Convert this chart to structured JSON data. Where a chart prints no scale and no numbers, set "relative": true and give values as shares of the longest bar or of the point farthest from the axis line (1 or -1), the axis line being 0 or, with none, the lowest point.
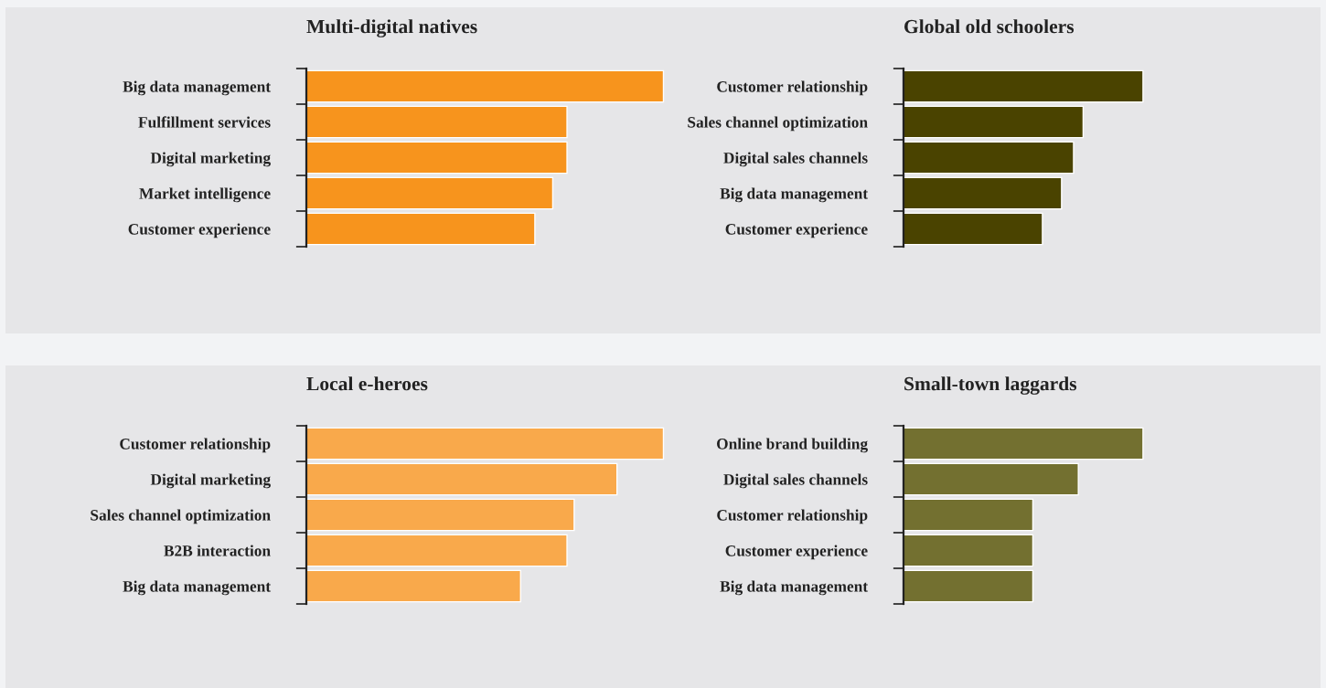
{
  "chart_data": [
    {
      "type": "bar",
      "orientation": "horizontal",
      "relative": true,
      "title": "Multi-digital natives",
      "categories": [
        "Big data management",
        "Fulfillment services",
        "Digital marketing",
        "Market intelligence",
        "Customer experience"
      ],
      "values": [
        1,
        0.73,
        0.73,
        0.69,
        0.64
      ],
      "color": "#f7941d"
    },
    {
      "type": "bar",
      "orientation": "horizontal",
      "relative": true,
      "title": "Global old schoolers",
      "categories": [
        "Customer relationship",
        "Sales channel optimization",
        "Digital sales channels",
        "Big data management",
        "Customer experience"
      ],
      "values": [
        1,
        0.75,
        0.71,
        0.66,
        0.58
      ],
      "color": "#4a4300"
    },
    {
      "type": "bar",
      "orientation": "horizontal",
      "relative": true,
      "title": "Local e-heroes",
      "categories": [
        "Customer relationship",
        "Digital marketing",
        "Sales channel optimization",
        "B2B interaction",
        "Big data management"
      ],
      "values": [
        1,
        0.87,
        0.75,
        0.73,
        0.6
      ],
      "color": "#f9a94b"
    },
    {
      "type": "bar",
      "orientation": "horizontal",
      "relative": true,
      "title": "Small-town laggards",
      "categories": [
        "Online brand building",
        "Digital sales channels",
        "Customer relationship",
        "Customer experience",
        "Big data management"
      ],
      "values": [
        1,
        0.73,
        0.54,
        0.54,
        0.54
      ],
      "color": "#737030"
    }
  ]
}
